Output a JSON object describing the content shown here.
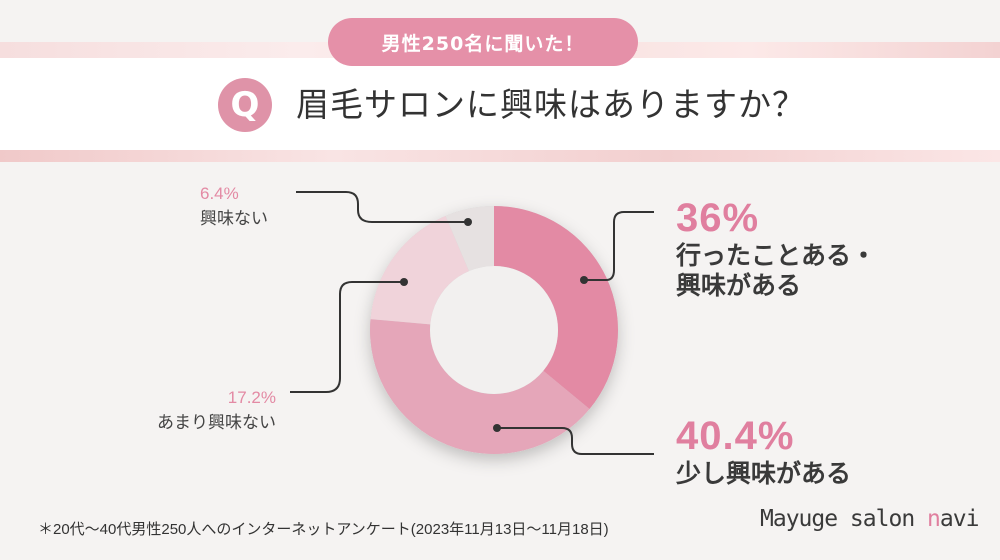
{
  "header": {
    "badge_text": "男性250名に聞いた！",
    "q_mark": "Q",
    "question": "眉毛サロンに興味はありますか？"
  },
  "chart_data": {
    "type": "pie",
    "style": "donut",
    "categories": [
      "行ったことある・興味がある",
      "少し興味がある",
      "あまり興味ない",
      "興味ない"
    ],
    "values": [
      36,
      40.4,
      17.2,
      6.4
    ],
    "colors": [
      "#e38aa4",
      "#e5a6b9",
      "#f0d3da",
      "#e6e1e1"
    ],
    "labels": [
      {
        "pct": "36%",
        "name_lines": [
          "行ったことある・",
          "興味がある"
        ]
      },
      {
        "pct": "40.4%",
        "name_lines": [
          "少し興味がある"
        ]
      },
      {
        "pct": "17.2%",
        "name_lines": [
          "あまり興味ない"
        ]
      },
      {
        "pct": "6.4%",
        "name_lines": [
          "興味ない"
        ]
      }
    ]
  },
  "footnote": "＊20代〜40代男性250人へのインターネットアンケート(2023年11月13日〜11月18日)",
  "logo": {
    "main": "Mayuge salon ",
    "accent": "n",
    "rest": "avi"
  }
}
